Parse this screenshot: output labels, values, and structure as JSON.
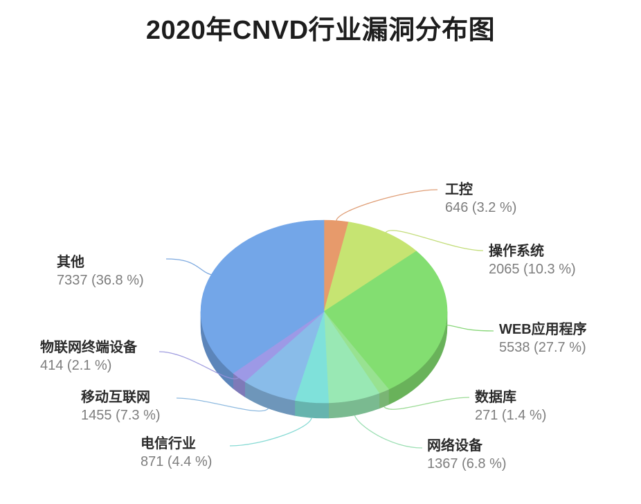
{
  "title": "2020年CNVD行业漏洞分布图",
  "chart_data": {
    "type": "pie",
    "style": "3d-pie",
    "title": "2020年CNVD行业漏洞分布图",
    "legend_position": "callout-labels",
    "value_label_format": "value (pct %)",
    "start_angle_deg_clockwise_from_top": 0,
    "slices": [
      {
        "label": "工控",
        "value": 646,
        "pct": 3.2,
        "color": "#E79A6B",
        "display": "646 (3.2 %)"
      },
      {
        "label": "操作系统",
        "value": 2065,
        "pct": 10.3,
        "color": "#C6E472",
        "display": "2065 (10.3 %)"
      },
      {
        "label": "WEB应用程序",
        "value": 5538,
        "pct": 27.7,
        "color": "#83DE71",
        "display": "5538 (27.7 %)"
      },
      {
        "label": "数据库",
        "value": 271,
        "pct": 1.4,
        "color": "#98E291",
        "display": "271 (1.4 %)"
      },
      {
        "label": "网络设备",
        "value": 1367,
        "pct": 6.8,
        "color": "#99E8B4",
        "display": "1367 (6.8 %)"
      },
      {
        "label": "电信行业",
        "value": 871,
        "pct": 4.4,
        "color": "#7FE1DA",
        "display": "871 (4.4 %)"
      },
      {
        "label": "移动互联网",
        "value": 1455,
        "pct": 7.3,
        "color": "#89BCE9",
        "display": "1455 (7.3 %)"
      },
      {
        "label": "物联网终端设备",
        "value": 414,
        "pct": 2.1,
        "color": "#9D99E6",
        "display": "414 (2.1 %)"
      },
      {
        "label": "其他",
        "value": 7337,
        "pct": 36.8,
        "color": "#73A6E8",
        "display": "7337 (36.8 %)"
      }
    ]
  }
}
